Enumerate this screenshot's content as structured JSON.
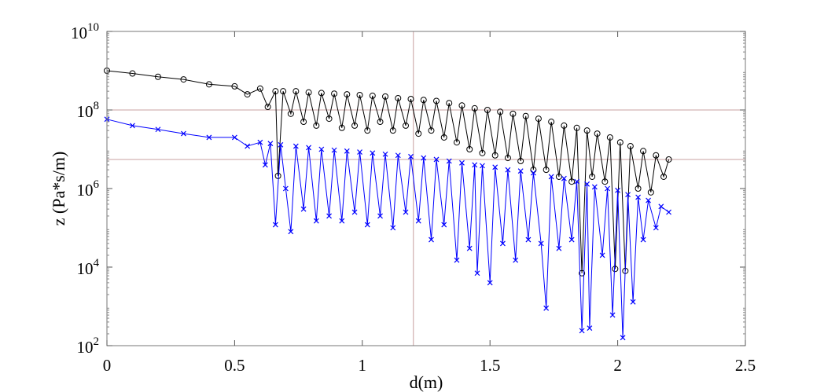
{
  "chart_data": {
    "type": "line",
    "xlabel": "d(m)",
    "ylabel": "z (Pa*s/m)",
    "xlim": [
      0,
      2.5
    ],
    "ylim": [
      100,
      10000000000
    ],
    "yscale": "log",
    "xticks": [
      "0",
      "0.5",
      "1",
      "1.5",
      "2",
      "2.5"
    ],
    "yticks": [
      {
        "base": "10",
        "exp": "2"
      },
      {
        "base": "10",
        "exp": "4"
      },
      {
        "base": "10",
        "exp": "6"
      },
      {
        "base": "10",
        "exp": "8"
      },
      {
        "base": "10",
        "exp": "10"
      }
    ],
    "grid": false,
    "crosshair": {
      "x": 1.2,
      "y": [
        100000000,
        5500000
      ],
      "color": "#c8a0a0"
    },
    "series": [
      {
        "color": "#000000",
        "marker": "circle",
        "points": [
          [
            0,
            1000000000.0
          ],
          [
            0.1,
            850000000.0
          ],
          [
            0.2,
            700000000.0
          ],
          [
            0.3,
            600000000.0
          ],
          [
            0.4,
            450000000.0
          ],
          [
            0.5,
            400000000.0
          ],
          [
            0.55,
            250000000.0
          ],
          [
            0.6,
            350000000.0
          ],
          [
            0.63,
            120000000.0
          ],
          [
            0.66,
            300000000.0
          ],
          [
            0.67,
            2100000.0
          ],
          [
            0.69,
            300000000.0
          ],
          [
            0.72,
            80000000.0
          ],
          [
            0.74,
            300000000.0
          ],
          [
            0.77,
            50000000.0
          ],
          [
            0.79,
            280000000.0
          ],
          [
            0.82,
            40000000.0
          ],
          [
            0.84,
            270000000.0
          ],
          [
            0.87,
            60000000.0
          ],
          [
            0.89,
            260000000.0
          ],
          [
            0.92,
            35000000.0
          ],
          [
            0.94,
            250000000.0
          ],
          [
            0.97,
            40000000.0
          ],
          [
            0.99,
            240000000.0
          ],
          [
            1.02,
            30000000.0
          ],
          [
            1.04,
            230000000.0
          ],
          [
            1.07,
            50000000.0
          ],
          [
            1.09,
            220000000.0
          ],
          [
            1.12,
            30000000.0
          ],
          [
            1.14,
            200000000.0
          ],
          [
            1.17,
            40000000.0
          ],
          [
            1.19,
            190000000.0
          ],
          [
            1.22,
            25000000.0
          ],
          [
            1.24,
            180000000.0
          ],
          [
            1.27,
            30000000.0
          ],
          [
            1.29,
            170000000.0
          ],
          [
            1.32,
            20000000.0
          ],
          [
            1.34,
            150000000.0
          ],
          [
            1.37,
            15000000.0
          ],
          [
            1.39,
            130000000.0
          ],
          [
            1.42,
            10000000.0
          ],
          [
            1.44,
            110000000.0
          ],
          [
            1.47,
            8000000.0
          ],
          [
            1.49,
            100000000.0
          ],
          [
            1.52,
            7000000.0
          ],
          [
            1.54,
            90000000.0
          ],
          [
            1.57,
            6000000.0
          ],
          [
            1.59,
            80000000.0
          ],
          [
            1.62,
            5000000.0
          ],
          [
            1.64,
            70000000.0
          ],
          [
            1.67,
            3000000.0
          ],
          [
            1.69,
            60000000.0
          ],
          [
            1.72,
            3000000.0
          ],
          [
            1.74,
            50000000.0
          ],
          [
            1.77,
            2000000.0
          ],
          [
            1.79,
            40000000.0
          ],
          [
            1.82,
            1500000.0
          ],
          [
            1.84,
            35000000.0
          ],
          [
            1.86,
            7000.0
          ],
          [
            1.88,
            30000000.0
          ],
          [
            1.9,
            2000000.0
          ],
          [
            1.92,
            25000000.0
          ],
          [
            1.95,
            1500000.0
          ],
          [
            1.97,
            20000000.0
          ],
          [
            1.99,
            9000.0
          ],
          [
            2.01,
            15000000.0
          ],
          [
            2.03,
            8000.0
          ],
          [
            2.05,
            12000000.0
          ],
          [
            2.08,
            1000000.0
          ],
          [
            2.1,
            9000000.0
          ],
          [
            2.13,
            800000.0
          ],
          [
            2.15,
            7000000.0
          ],
          [
            2.18,
            2000000.0
          ],
          [
            2.2,
            5500000.0
          ]
        ]
      },
      {
        "color": "#0000ff",
        "marker": "x",
        "points": [
          [
            0,
            58000000.0
          ],
          [
            0.1,
            40000000.0
          ],
          [
            0.2,
            32000000.0
          ],
          [
            0.3,
            25000000.0
          ],
          [
            0.4,
            20000000.0
          ],
          [
            0.5,
            20000000.0
          ],
          [
            0.55,
            12000000.0
          ],
          [
            0.6,
            15000000.0
          ],
          [
            0.62,
            4000000.0
          ],
          [
            0.64,
            14000000.0
          ],
          [
            0.66,
            120000.0
          ],
          [
            0.68,
            13000000.0
          ],
          [
            0.7,
            1000000.0
          ],
          [
            0.72,
            80000.0
          ],
          [
            0.74,
            12000000.0
          ],
          [
            0.77,
            300000.0
          ],
          [
            0.79,
            11000000.0
          ],
          [
            0.82,
            150000.0
          ],
          [
            0.84,
            10000000.0
          ],
          [
            0.87,
            200000.0
          ],
          [
            0.89,
            9500000.0
          ],
          [
            0.92,
            150000.0
          ],
          [
            0.94,
            9000000.0
          ],
          [
            0.97,
            250000.0
          ],
          [
            0.99,
            8500000.0
          ],
          [
            1.02,
            120000.0
          ],
          [
            1.04,
            8000000.0
          ],
          [
            1.07,
            200000.0
          ],
          [
            1.09,
            7500000.0
          ],
          [
            1.12,
            100000.0
          ],
          [
            1.14,
            7000000.0
          ],
          [
            1.17,
            250000.0
          ],
          [
            1.19,
            6500000.0
          ],
          [
            1.22,
            150000.0
          ],
          [
            1.24,
            6000000.0
          ],
          [
            1.27,
            50000.0
          ],
          [
            1.29,
            5500000.0
          ],
          [
            1.32,
            120000.0
          ],
          [
            1.34,
            5000000.0
          ],
          [
            1.37,
            15000.0
          ],
          [
            1.39,
            4500000.0
          ],
          [
            1.42,
            30000.0
          ],
          [
            1.44,
            4000000.0
          ],
          [
            1.45,
            7000.0
          ],
          [
            1.47,
            3800000.0
          ],
          [
            1.5,
            4000.0
          ],
          [
            1.52,
            3500000.0
          ],
          [
            1.55,
            40000.0
          ],
          [
            1.57,
            3000000.0
          ],
          [
            1.6,
            15000.0
          ],
          [
            1.62,
            2800000.0
          ],
          [
            1.65,
            50000.0
          ],
          [
            1.67,
            2500000.0
          ],
          [
            1.7,
            40000.0
          ],
          [
            1.72,
            900.0
          ],
          [
            1.74,
            2000000.0
          ],
          [
            1.77,
            30000.0
          ],
          [
            1.79,
            1800000.0
          ],
          [
            1.82,
            50000.0
          ],
          [
            1.84,
            1500000.0
          ],
          [
            1.86,
            240.0
          ],
          [
            1.88,
            1300000.0
          ],
          [
            1.89,
            280.0
          ],
          [
            1.91,
            1100000.0
          ],
          [
            1.94,
            20000.0
          ],
          [
            1.96,
            1000000.0
          ],
          [
            1.98,
            600.0
          ],
          [
            2.0,
            900000.0
          ],
          [
            2.02,
            160.0
          ],
          [
            2.04,
            700000.0
          ],
          [
            2.06,
            1300.0
          ],
          [
            2.08,
            600000.0
          ],
          [
            2.1,
            50000.0
          ],
          [
            2.12,
            500000.0
          ],
          [
            2.15,
            100000.0
          ],
          [
            2.17,
            350000.0
          ],
          [
            2.2,
            250000.0
          ]
        ]
      }
    ]
  }
}
